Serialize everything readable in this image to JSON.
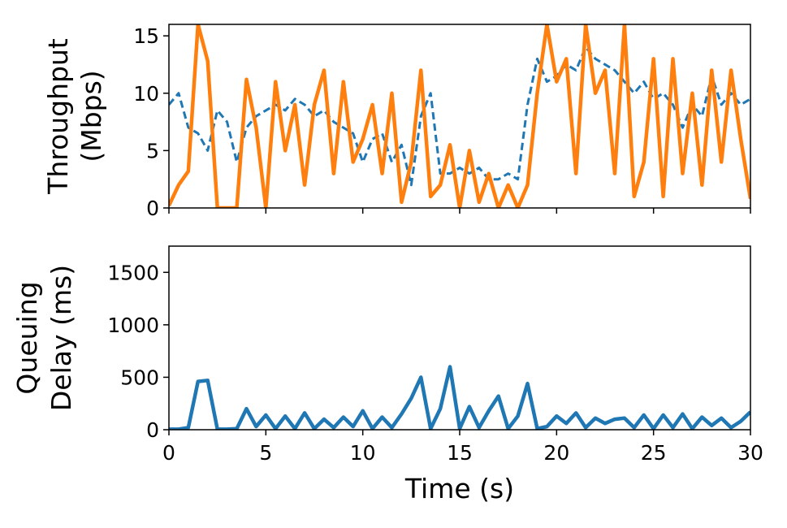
{
  "chart_data": [
    {
      "type": "line",
      "ylabel": [
        "Throughput",
        "(Mbps)"
      ],
      "x": [
        0,
        0.5,
        1,
        1.5,
        2,
        2.5,
        3,
        3.5,
        4,
        4.5,
        5,
        5.5,
        6,
        6.5,
        7,
        7.5,
        8,
        8.5,
        9,
        9.5,
        10,
        10.5,
        11,
        11.5,
        12,
        12.5,
        13,
        13.5,
        14,
        14.5,
        15,
        15.5,
        16,
        16.5,
        17,
        17.5,
        18,
        18.5,
        19,
        19.5,
        20,
        20.5,
        21,
        21.5,
        22,
        22.5,
        23,
        23.5,
        24,
        24.5,
        25,
        25.5,
        26,
        26.5,
        27,
        27.5,
        28,
        28.5,
        29,
        29.5,
        30
      ],
      "series": [
        {
          "color": "#1f77b4",
          "linestyle": "dashed",
          "values": [
            9,
            10,
            7,
            6.5,
            5,
            8.5,
            7.5,
            4,
            7,
            8,
            8.5,
            9,
            8.5,
            9.5,
            9,
            8,
            8.5,
            7.5,
            7,
            6.5,
            4,
            6,
            6.5,
            4,
            5.5,
            2,
            8,
            10,
            3,
            3,
            3.5,
            3,
            3.5,
            2.5,
            2.5,
            3,
            2.5,
            9,
            13,
            11,
            11.5,
            12.5,
            12,
            14,
            13,
            12.5,
            12,
            11,
            10,
            11,
            9.5,
            10,
            9,
            7,
            9,
            8,
            11.5,
            9,
            10,
            9,
            9.5
          ]
        },
        {
          "color": "#ff7f0e",
          "linestyle": "solid",
          "values": [
            0.2,
            2,
            3.2,
            16,
            12.8,
            0,
            0,
            0,
            11.2,
            7,
            0,
            11,
            5,
            9,
            2,
            9,
            12,
            3,
            11,
            4,
            6,
            9,
            3,
            10,
            0.5,
            4,
            12,
            1,
            2,
            5.5,
            0,
            5,
            0.5,
            3,
            0,
            2,
            0,
            2,
            10,
            16,
            11,
            13,
            3,
            16,
            10,
            12,
            3,
            16,
            1,
            4,
            13,
            1,
            13,
            3,
            10,
            2,
            12,
            4,
            12,
            6,
            0.8
          ]
        }
      ],
      "xlim": [
        0,
        30
      ],
      "xticks": [
        0,
        5,
        10,
        15,
        20,
        25,
        30
      ],
      "show_xticklabels": false,
      "ylim": [
        0,
        16
      ],
      "yticks": [
        0,
        5,
        10,
        15
      ]
    },
    {
      "type": "line",
      "ylabel": [
        "Queuing",
        "Delay (ms)"
      ],
      "xlabel": "Time (s)",
      "x": [
        0,
        0.5,
        1,
        1.5,
        2,
        2.5,
        3,
        3.5,
        4,
        4.5,
        5,
        5.5,
        6,
        6.5,
        7,
        7.5,
        8,
        8.5,
        9,
        9.5,
        10,
        10.5,
        11,
        11.5,
        12,
        12.5,
        13,
        13.5,
        14,
        14.5,
        15,
        15.5,
        16,
        16.5,
        17,
        17.5,
        18,
        18.5,
        19,
        19.5,
        20,
        20.5,
        21,
        21.5,
        22,
        22.5,
        23,
        23.5,
        24,
        24.5,
        25,
        25.5,
        26,
        26.5,
        27,
        27.5,
        28,
        28.5,
        29,
        29.5,
        30
      ],
      "series": [
        {
          "color": "#1f77b4",
          "linestyle": "solid",
          "values": [
            5,
            5,
            20,
            460,
            470,
            5,
            5,
            10,
            200,
            30,
            140,
            10,
            130,
            10,
            160,
            10,
            100,
            20,
            120,
            30,
            180,
            10,
            120,
            20,
            150,
            300,
            500,
            10,
            200,
            600,
            10,
            220,
            20,
            180,
            320,
            10,
            130,
            440,
            10,
            30,
            130,
            60,
            160,
            20,
            110,
            60,
            100,
            110,
            20,
            140,
            10,
            140,
            20,
            150,
            10,
            120,
            40,
            110,
            20,
            80,
            170
          ]
        }
      ],
      "xlim": [
        0,
        30
      ],
      "xticks": [
        0,
        5,
        10,
        15,
        20,
        25,
        30
      ],
      "show_xticklabels": true,
      "ylim": [
        0,
        1750
      ],
      "yticks": [
        0,
        500,
        1000,
        1500
      ]
    }
  ]
}
